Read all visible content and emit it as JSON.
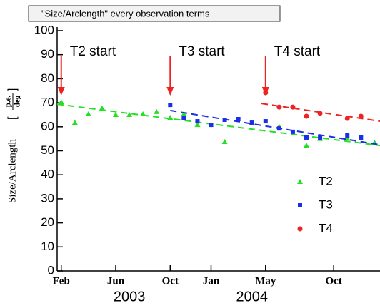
{
  "chart_data": {
    "type": "scatter",
    "title": "\"Size/Arclength\" every observation terms",
    "y_label": "Size/Arclength",
    "y_unit_numerator": "p.e.",
    "y_unit_denominator": "deg",
    "xlim": [
      0.7,
      24.4
    ],
    "xticks": [
      {
        "value": 1,
        "label": "Feb"
      },
      {
        "value": 5,
        "label": "Jun"
      },
      {
        "value": 9,
        "label": "Oct"
      },
      {
        "value": 12,
        "label": "Jan"
      },
      {
        "value": 16,
        "label": "May"
      },
      {
        "value": 21,
        "label": "Oct"
      }
    ],
    "years": [
      {
        "value": 6,
        "label": "2003"
      },
      {
        "value": 15,
        "label": "2004"
      }
    ],
    "ylim": [
      0,
      100
    ],
    "yticks": [
      0,
      10,
      20,
      30,
      40,
      50,
      60,
      70,
      80,
      90,
      100
    ],
    "grid": false,
    "legend": "right",
    "annotations": [
      {
        "text": "T2 start",
        "x": 1
      },
      {
        "text": "T3 start",
        "x": 9
      },
      {
        "text": "T4 start",
        "x": 16
      }
    ],
    "series": [
      {
        "name": "T2",
        "color": "#22e022",
        "marker": "triangle",
        "x": [
          1,
          2,
          3,
          4,
          5,
          6,
          7,
          8,
          9,
          10,
          11,
          13,
          15,
          17,
          19,
          20,
          22,
          24
        ],
        "values": [
          70.3,
          61.7,
          65.3,
          67.7,
          65,
          65,
          65.3,
          66.2,
          63.8,
          65.3,
          60.8,
          53.7,
          61.7,
          60,
          52.2,
          55,
          55.2,
          53.4
        ],
        "trend": {
          "x": [
            0.7,
            24.4
          ],
          "values": [
            69.4,
            52.2
          ]
        }
      },
      {
        "name": "T3",
        "color": "#1a2ee6",
        "marker": "square",
        "x": [
          9,
          10,
          11,
          12,
          13,
          14,
          15,
          16,
          17,
          18,
          19,
          20,
          22,
          23
        ],
        "values": [
          69.1,
          63.8,
          62.3,
          60.8,
          62.9,
          63.2,
          61.7,
          62.3,
          59.3,
          57.9,
          55.5,
          55.5,
          56.4,
          55.5
        ],
        "trend": {
          "x": [
            9,
            24.4
          ],
          "values": [
            66.8,
            52.5
          ]
        }
      },
      {
        "name": "T4",
        "color": "#ee2222",
        "marker": "circle",
        "x": [
          16,
          17,
          18,
          19,
          20,
          22,
          23
        ],
        "values": [
          74.2,
          68.2,
          68.2,
          64.4,
          65.6,
          63.5,
          64.4
        ],
        "trend": {
          "x": [
            15.7,
            24.4
          ],
          "values": [
            69.7,
            62.3
          ]
        }
      }
    ]
  }
}
